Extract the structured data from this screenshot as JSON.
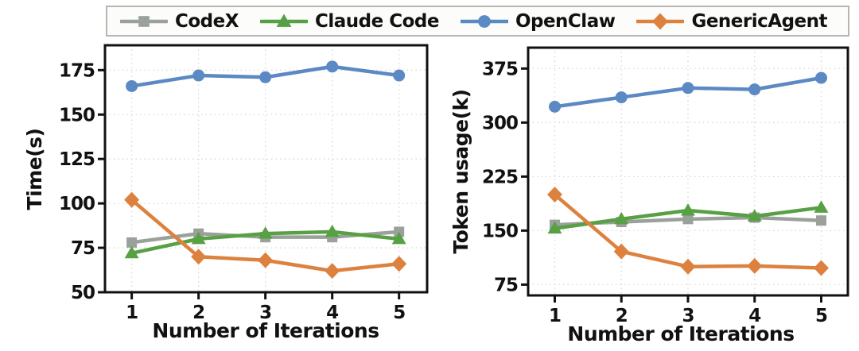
{
  "figure": {
    "background": "#ffffff",
    "text_color": "#111111",
    "spine_color": "#111111",
    "grid_color": "#d8d8d8"
  },
  "legend": {
    "position": "top",
    "items": [
      {
        "label": "CodeX",
        "color": "#9aa19b",
        "marker": "square"
      },
      {
        "label": "Claude Code",
        "color": "#58a044",
        "marker": "triangle"
      },
      {
        "label": "OpenClaw",
        "color": "#5b89c4",
        "marker": "circle"
      },
      {
        "label": "GenericAgent",
        "color": "#dd813f",
        "marker": "diamond"
      }
    ]
  },
  "chart_data": [
    {
      "type": "line",
      "title": "",
      "xlabel": "Number of Iterations",
      "ylabel": "Time(s)",
      "x": [
        1,
        2,
        3,
        4,
        5
      ],
      "xticks": [
        1,
        2,
        3,
        4,
        5
      ],
      "xlim": [
        0.6,
        5.42
      ],
      "yticks": [
        50,
        75,
        100,
        125,
        150,
        175
      ],
      "ylim": [
        50,
        189
      ],
      "grid": true,
      "legend_position": "shared-top",
      "series": [
        {
          "name": "CodeX",
          "color": "#9aa19b",
          "marker": "square",
          "values": [
            78,
            83,
            81,
            81,
            84
          ]
        },
        {
          "name": "Claude Code",
          "color": "#58a044",
          "marker": "triangle",
          "values": [
            72,
            80,
            83,
            84,
            80
          ]
        },
        {
          "name": "OpenClaw",
          "color": "#5b89c4",
          "marker": "circle",
          "values": [
            166,
            172,
            171,
            177,
            172
          ]
        },
        {
          "name": "GenericAgent",
          "color": "#dd813f",
          "marker": "diamond",
          "values": [
            102,
            70,
            68,
            62,
            66
          ]
        }
      ]
    },
    {
      "type": "line",
      "title": "",
      "xlabel": "Number of Iterations",
      "ylabel": "Token usage(k)",
      "x": [
        1,
        2,
        3,
        4,
        5
      ],
      "xticks": [
        1,
        2,
        3,
        4,
        5
      ],
      "xlim": [
        0.6,
        5.4
      ],
      "yticks": [
        75,
        150,
        225,
        300,
        375
      ],
      "ylim": [
        60,
        404
      ],
      "grid": true,
      "legend_position": "shared-top",
      "series": [
        {
          "name": "CodeX",
          "color": "#9aa19b",
          "marker": "square",
          "values": [
            158,
            162,
            166,
            168,
            164
          ]
        },
        {
          "name": "Claude Code",
          "color": "#58a044",
          "marker": "triangle",
          "values": [
            153,
            166,
            178,
            170,
            182
          ]
        },
        {
          "name": "OpenClaw",
          "color": "#5b89c4",
          "marker": "circle",
          "values": [
            322,
            335,
            348,
            346,
            362
          ]
        },
        {
          "name": "GenericAgent",
          "color": "#dd813f",
          "marker": "diamond",
          "values": [
            200,
            121,
            100,
            101,
            98
          ]
        }
      ]
    }
  ]
}
